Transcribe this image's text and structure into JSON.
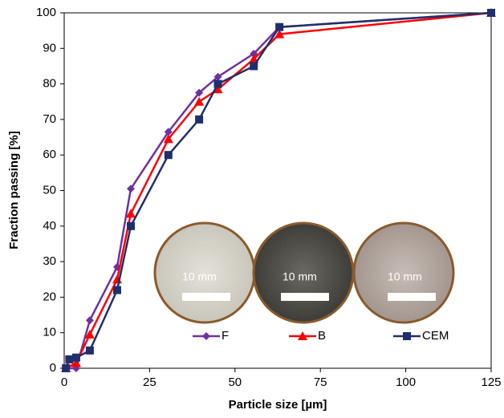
{
  "chart_data": {
    "type": "line",
    "x_label": "Particle size [µm]",
    "y_label": "Fraction passing [%]",
    "xlim": [
      0,
      125
    ],
    "xticks": [
      0,
      25,
      50,
      75,
      100,
      125
    ],
    "ylim": [
      0,
      100
    ],
    "yticks": [
      0,
      10,
      20,
      30,
      40,
      50,
      60,
      70,
      80,
      90,
      100
    ],
    "grid": false,
    "legend": "lower center",
    "annotations": [
      "10 mm",
      "10 mm",
      "10 mm"
    ],
    "series": [
      {
        "name": "F",
        "color": "#7030a0",
        "marker": "diamond",
        "x": [
          0.5,
          3.5,
          7.5,
          15.5,
          19.5,
          30.5,
          39.5,
          45,
          55.5,
          63,
          125
        ],
        "values": [
          0,
          0,
          13.5,
          28.5,
          50.5,
          66.5,
          77.5,
          82,
          88.5,
          96,
          100
        ]
      },
      {
        "name": "B",
        "color": "#ff0000",
        "marker": "triangle",
        "x": [
          0.5,
          3.5,
          7.5,
          15.5,
          19.5,
          30.5,
          39.5,
          45,
          55.5,
          63,
          125
        ],
        "values": [
          0,
          1.5,
          9.5,
          25,
          43.5,
          64.5,
          75,
          78.5,
          87,
          94,
          100
        ]
      },
      {
        "name": "CEM",
        "color": "#1f2f6e",
        "marker": "square",
        "x": [
          0.5,
          1.5,
          3.5,
          7.5,
          15.5,
          19.5,
          30.5,
          39.5,
          45,
          55.5,
          63,
          125
        ],
        "values": [
          0,
          2.5,
          3,
          5,
          22,
          40,
          60,
          70,
          80,
          85,
          96,
          100
        ]
      }
    ]
  }
}
